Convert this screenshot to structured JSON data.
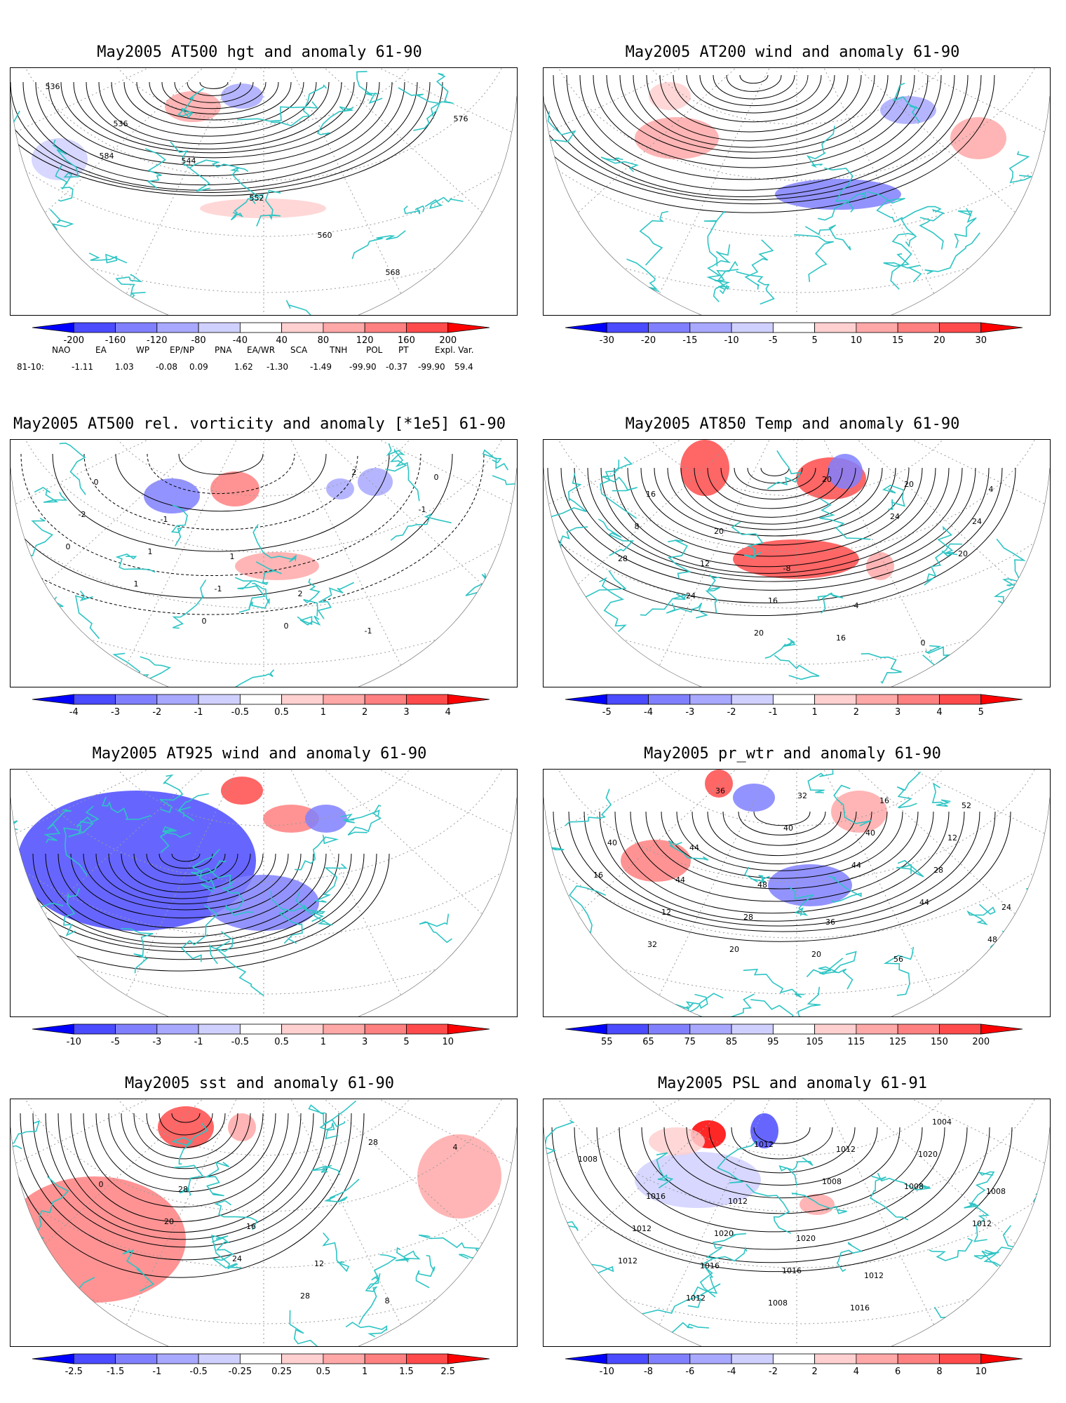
{
  "panels": [
    {
      "id": "p1",
      "title": "May2005 AT500 hgt and anomaly 61-90",
      "colorbar": {
        "labels": [
          "-200",
          "-160",
          "-120",
          "-80",
          "-40",
          "40",
          "80",
          "120",
          "160",
          "200"
        ],
        "colors": [
          "#0000ff",
          "#4b4bff",
          "#8080ff",
          "#a8a8ff",
          "#d0d0ff",
          "#ffffff",
          "#ffd0d0",
          "#ffa8a8",
          "#ff8080",
          "#ff4b4b",
          "#ff0000"
        ]
      },
      "contour_labels": [
        "536",
        "536",
        "544",
        "552",
        "560",
        "568",
        "576",
        "584"
      ]
    },
    {
      "id": "p2",
      "title": "May2005 AT200 wind and anomaly 61-90",
      "colorbar": {
        "labels": [
          "-30",
          "-20",
          "-15",
          "-10",
          "-5",
          "5",
          "10",
          "15",
          "20",
          "30"
        ],
        "colors": [
          "#0000ff",
          "#4b4bff",
          "#8080ff",
          "#a8a8ff",
          "#d0d0ff",
          "#ffffff",
          "#ffd0d0",
          "#ffa8a8",
          "#ff8080",
          "#ff4b4b",
          "#ff0000"
        ]
      },
      "contour_labels": []
    },
    {
      "id": "p3",
      "title": "May2005 AT500 rel. vorticity and anomaly [*1e5] 61-90",
      "colorbar": {
        "labels": [
          "-4",
          "-3",
          "-2",
          "-1",
          "-0.5",
          "0.5",
          "1",
          "2",
          "3",
          "4"
        ],
        "colors": [
          "#0000ff",
          "#4b4bff",
          "#8080ff",
          "#a8a8ff",
          "#d0d0ff",
          "#ffffff",
          "#ffd0d0",
          "#ffa8a8",
          "#ff8080",
          "#ff4b4b",
          "#ff0000"
        ]
      },
      "contour_labels": [
        "0",
        "-1",
        "1",
        "2",
        "-1",
        "0",
        "-2",
        "1",
        "-1",
        "0",
        "2",
        "-1",
        "0",
        "1",
        "0"
      ]
    },
    {
      "id": "p4",
      "title": "May2005 AT850 Temp and anomaly 61-90",
      "colorbar": {
        "labels": [
          "-5",
          "-4",
          "-3",
          "-2",
          "-1",
          "1",
          "2",
          "3",
          "4",
          "5"
        ],
        "colors": [
          "#0000ff",
          "#4b4bff",
          "#8080ff",
          "#a8a8ff",
          "#d0d0ff",
          "#ffffff",
          "#ffd0d0",
          "#ffa8a8",
          "#ff8080",
          "#ff4b4b",
          "#ff0000"
        ]
      },
      "contour_labels": [
        "16",
        "20",
        "-8",
        "-4",
        "0",
        "4",
        "8",
        "12",
        "16",
        "16",
        "20",
        "24",
        "28",
        "24",
        "20",
        "20",
        "24",
        "20"
      ]
    },
    {
      "id": "p5",
      "title": "May2005 AT925 wind and anomaly 61-90",
      "colorbar": {
        "labels": [
          "-10",
          "-5",
          "-3",
          "-1",
          "-0.5",
          "0.5",
          "1",
          "3",
          "5",
          "10"
        ],
        "colors": [
          "#0000ff",
          "#4b4bff",
          "#8080ff",
          "#a8a8ff",
          "#d0d0ff",
          "#ffffff",
          "#ffd0d0",
          "#ffa8a8",
          "#ff8080",
          "#ff4b4b",
          "#ff0000"
        ]
      },
      "contour_labels": []
    },
    {
      "id": "p6",
      "title": "May2005 pr_wtr and anomaly 61-90",
      "colorbar": {
        "labels": [
          "55",
          "65",
          "75",
          "85",
          "95",
          "105",
          "115",
          "125",
          "150",
          "200"
        ],
        "colors": [
          "#0000ff",
          "#4b4bff",
          "#8080ff",
          "#a8a8ff",
          "#d0d0ff",
          "#ffffff",
          "#ffd0d0",
          "#ffa8a8",
          "#ff8080",
          "#ff4b4b",
          "#ff0000"
        ]
      },
      "contour_labels": [
        "44",
        "48",
        "36",
        "56",
        "52",
        "40",
        "44",
        "28",
        "20",
        "16",
        "12",
        "16",
        "12",
        "20",
        "32",
        "40",
        "28",
        "24",
        "32",
        "36",
        "40",
        "44",
        "44",
        "48"
      ]
    },
    {
      "id": "p7",
      "title": "May2005 sst and anomaly 61-90",
      "colorbar": {
        "labels": [
          "-2.5",
          "-1.5",
          "-1",
          "-0.5",
          "-0.25",
          "0.25",
          "0.5",
          "1",
          "1.5",
          "2.5"
        ],
        "colors": [
          "#0000ff",
          "#4b4bff",
          "#8080ff",
          "#a8a8ff",
          "#d0d0ff",
          "#ffffff",
          "#ffd0d0",
          "#ffa8a8",
          "#ff8080",
          "#ff4b4b",
          "#ff0000"
        ]
      },
      "contour_labels": [
        "28",
        "16",
        "12",
        "8",
        "4",
        "0",
        "20",
        "24",
        "28",
        "28"
      ]
    },
    {
      "id": "p8",
      "title": "May2005 PSL and anomaly 61-91",
      "colorbar": {
        "labels": [
          "-10",
          "-8",
          "-6",
          "-4",
          "-2",
          "2",
          "4",
          "6",
          "8",
          "10"
        ],
        "colors": [
          "#0000ff",
          "#4b4bff",
          "#8080ff",
          "#a8a8ff",
          "#d0d0ff",
          "#ffffff",
          "#ffd0d0",
          "#ffa8a8",
          "#ff8080",
          "#ff4b4b",
          "#ff0000"
        ]
      },
      "contour_labels": [
        "1012",
        "1020",
        "1012",
        "1004",
        "1008",
        "1016",
        "1020",
        "1016",
        "1016",
        "1020",
        "1008",
        "1012",
        "1016",
        "1008",
        "1012",
        "1008",
        "1012",
        "1012",
        "1012",
        "1012",
        "1008"
      ]
    }
  ],
  "teleconnection": {
    "headers": [
      "NAO",
      "EA",
      "WP",
      "EP/NP",
      "PNA",
      "EA/WR",
      "SCA",
      "TNH",
      "POL",
      "PT",
      "Expl. Var."
    ],
    "row_label": "81-10:",
    "values": [
      "-1.11",
      "1.03",
      "-0.08",
      "0.09",
      "1.62",
      "-1.30",
      "-1.49",
      "-99.90",
      "-0.37",
      "-99.90",
      "59.4"
    ]
  },
  "colors": {
    "coastline": "#2ec4c4",
    "contour": "#000000",
    "grid": "#9a9a9a"
  }
}
